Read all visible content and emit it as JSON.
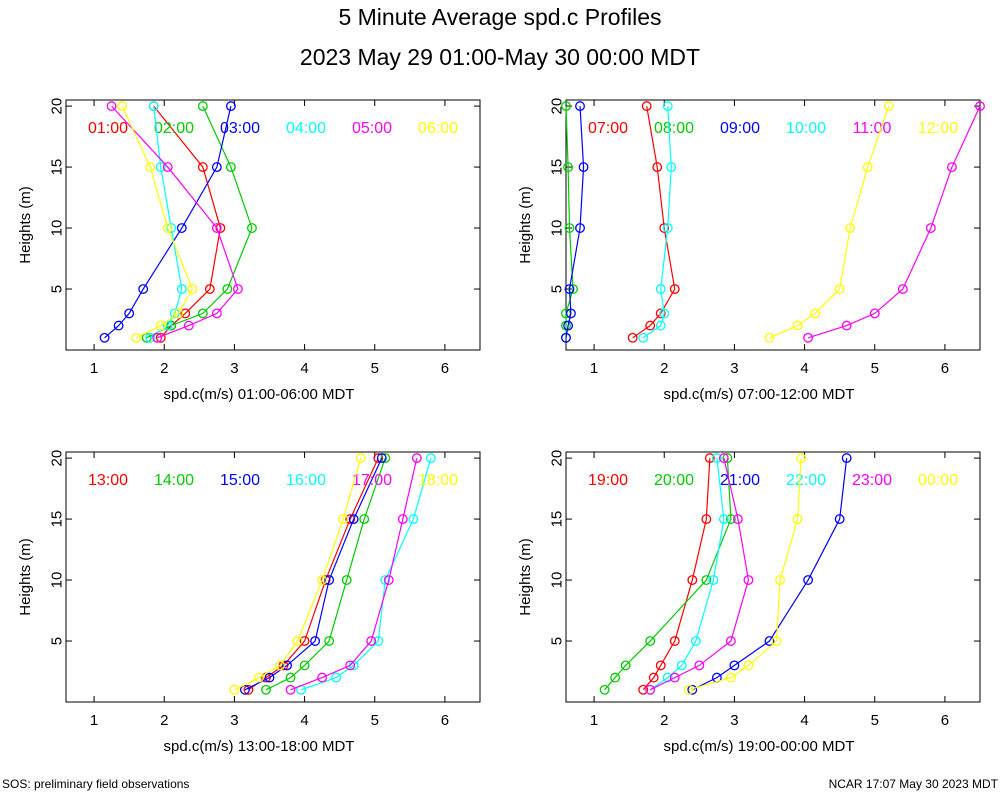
{
  "title": "5 Minute Average spd.c Profiles",
  "subtitle": "2023 May 29 01:00-May 30 00:00 MDT",
  "footer_left": "SOS: preliminary field observations",
  "footer_right": "NCAR 17:07 May 30 2023 MDT",
  "colors": {
    "red": "#ff0000",
    "green": "#00cc00",
    "blue": "#0000ff",
    "cyan": "#00ffff",
    "magenta": "#ff00ff",
    "yellow": "#ffff00"
  },
  "chart_data": [
    {
      "type": "line",
      "xlabel": "spd.c(m/s) 01:00-06:00 MDT",
      "ylabel": "Heights (m)",
      "xlim": [
        0.6,
        6.5
      ],
      "ylim": [
        0,
        20.5
      ],
      "xticks": [
        1,
        2,
        3,
        4,
        5,
        6
      ],
      "yticks": [
        5,
        10,
        15,
        20
      ],
      "heights": [
        1,
        2,
        3,
        5,
        10,
        15,
        20
      ],
      "series": [
        {
          "name": "01:00",
          "color": "red",
          "values": [
            1.95,
            2.1,
            2.3,
            2.65,
            2.8,
            2.55,
            1.85
          ]
        },
        {
          "name": "02:00",
          "color": "green",
          "values": [
            1.75,
            2.1,
            2.55,
            2.9,
            3.25,
            2.95,
            2.55
          ]
        },
        {
          "name": "03:00",
          "color": "blue",
          "values": [
            1.15,
            1.35,
            1.5,
            1.7,
            2.25,
            2.75,
            2.95
          ]
        },
        {
          "name": "04:00",
          "color": "cyan",
          "values": [
            1.8,
            2.05,
            2.15,
            2.25,
            2.1,
            1.95,
            1.85
          ]
        },
        {
          "name": "05:00",
          "color": "magenta",
          "values": [
            1.9,
            2.35,
            2.75,
            3.05,
            2.75,
            2.05,
            1.25
          ]
        },
        {
          "name": "06:00",
          "color": "yellow",
          "values": [
            1.6,
            1.95,
            2.2,
            2.4,
            2.05,
            1.8,
            1.4
          ]
        }
      ]
    },
    {
      "type": "line",
      "xlabel": "spd.c(m/s) 07:00-12:00 MDT",
      "ylabel": "Heights (m)",
      "xlim": [
        0.6,
        6.5
      ],
      "ylim": [
        0,
        20.5
      ],
      "xticks": [
        1,
        2,
        3,
        4,
        5,
        6
      ],
      "yticks": [
        5,
        10,
        15,
        20
      ],
      "heights": [
        1,
        2,
        3,
        5,
        10,
        15,
        20
      ],
      "series": [
        {
          "name": "07:00",
          "color": "red",
          "values": [
            1.55,
            1.8,
            1.95,
            2.15,
            2.0,
            1.9,
            1.75
          ]
        },
        {
          "name": "08:00",
          "color": "green",
          "values": [
            0.6,
            0.6,
            0.6,
            0.7,
            0.65,
            0.63,
            0.6
          ]
        },
        {
          "name": "09:00",
          "color": "blue",
          "values": [
            0.6,
            0.63,
            0.67,
            0.65,
            0.8,
            0.85,
            0.8
          ]
        },
        {
          "name": "10:00",
          "color": "cyan",
          "values": [
            1.7,
            1.95,
            2.0,
            1.95,
            2.05,
            2.1,
            2.05
          ]
        },
        {
          "name": "11:00",
          "color": "magenta",
          "values": [
            4.05,
            4.6,
            5.0,
            5.4,
            5.8,
            6.1,
            6.5
          ]
        },
        {
          "name": "12:00",
          "color": "yellow",
          "values": [
            3.5,
            3.9,
            4.15,
            4.5,
            4.65,
            4.9,
            5.2
          ]
        }
      ]
    },
    {
      "type": "line",
      "xlabel": "spd.c(m/s) 13:00-18:00 MDT",
      "ylabel": "Heights (m)",
      "xlim": [
        0.6,
        6.5
      ],
      "ylim": [
        0,
        20.5
      ],
      "xticks": [
        1,
        2,
        3,
        4,
        5,
        6
      ],
      "yticks": [
        5,
        10,
        15,
        20
      ],
      "heights": [
        1,
        2,
        3,
        5,
        10,
        15,
        20
      ],
      "series": [
        {
          "name": "13:00",
          "color": "red",
          "values": [
            3.2,
            3.45,
            3.7,
            4.0,
            4.3,
            4.65,
            5.05
          ]
        },
        {
          "name": "14:00",
          "color": "green",
          "values": [
            3.45,
            3.8,
            4.0,
            4.35,
            4.6,
            4.85,
            5.15
          ]
        },
        {
          "name": "15:00",
          "color": "blue",
          "values": [
            3.15,
            3.5,
            3.75,
            4.15,
            4.35,
            4.7,
            5.1
          ]
        },
        {
          "name": "16:00",
          "color": "cyan",
          "values": [
            3.95,
            4.45,
            4.7,
            5.05,
            5.15,
            5.55,
            5.8
          ]
        },
        {
          "name": "17:00",
          "color": "magenta",
          "values": [
            3.8,
            4.25,
            4.65,
            4.95,
            5.2,
            5.4,
            5.6
          ]
        },
        {
          "name": "18:00",
          "color": "yellow",
          "values": [
            3.0,
            3.35,
            3.65,
            3.9,
            4.25,
            4.55,
            4.8
          ]
        }
      ]
    },
    {
      "type": "line",
      "xlabel": "spd.c(m/s) 19:00-00:00 MDT",
      "ylabel": "Heights (m)",
      "xlim": [
        0.6,
        6.5
      ],
      "ylim": [
        0,
        20.5
      ],
      "xticks": [
        1,
        2,
        3,
        4,
        5,
        6
      ],
      "yticks": [
        5,
        10,
        15,
        20
      ],
      "heights": [
        1,
        2,
        3,
        5,
        10,
        15,
        20
      ],
      "series": [
        {
          "name": "19:00",
          "color": "red",
          "values": [
            1.7,
            1.85,
            1.95,
            2.15,
            2.4,
            2.6,
            2.65
          ]
        },
        {
          "name": "20:00",
          "color": "green",
          "values": [
            1.15,
            1.3,
            1.45,
            1.8,
            2.6,
            2.95,
            2.9
          ]
        },
        {
          "name": "21:00",
          "color": "blue",
          "values": [
            2.4,
            2.75,
            3.0,
            3.5,
            4.05,
            4.5,
            4.6
          ]
        },
        {
          "name": "22:00",
          "color": "cyan",
          "values": [
            1.8,
            2.05,
            2.25,
            2.45,
            2.7,
            2.85,
            2.75
          ]
        },
        {
          "name": "23:00",
          "color": "magenta",
          "values": [
            1.8,
            2.15,
            2.5,
            2.95,
            3.2,
            3.05,
            2.85
          ]
        },
        {
          "name": "00:00",
          "color": "yellow",
          "values": [
            2.35,
            2.95,
            3.2,
            3.6,
            3.65,
            3.9,
            3.95
          ]
        }
      ]
    }
  ]
}
